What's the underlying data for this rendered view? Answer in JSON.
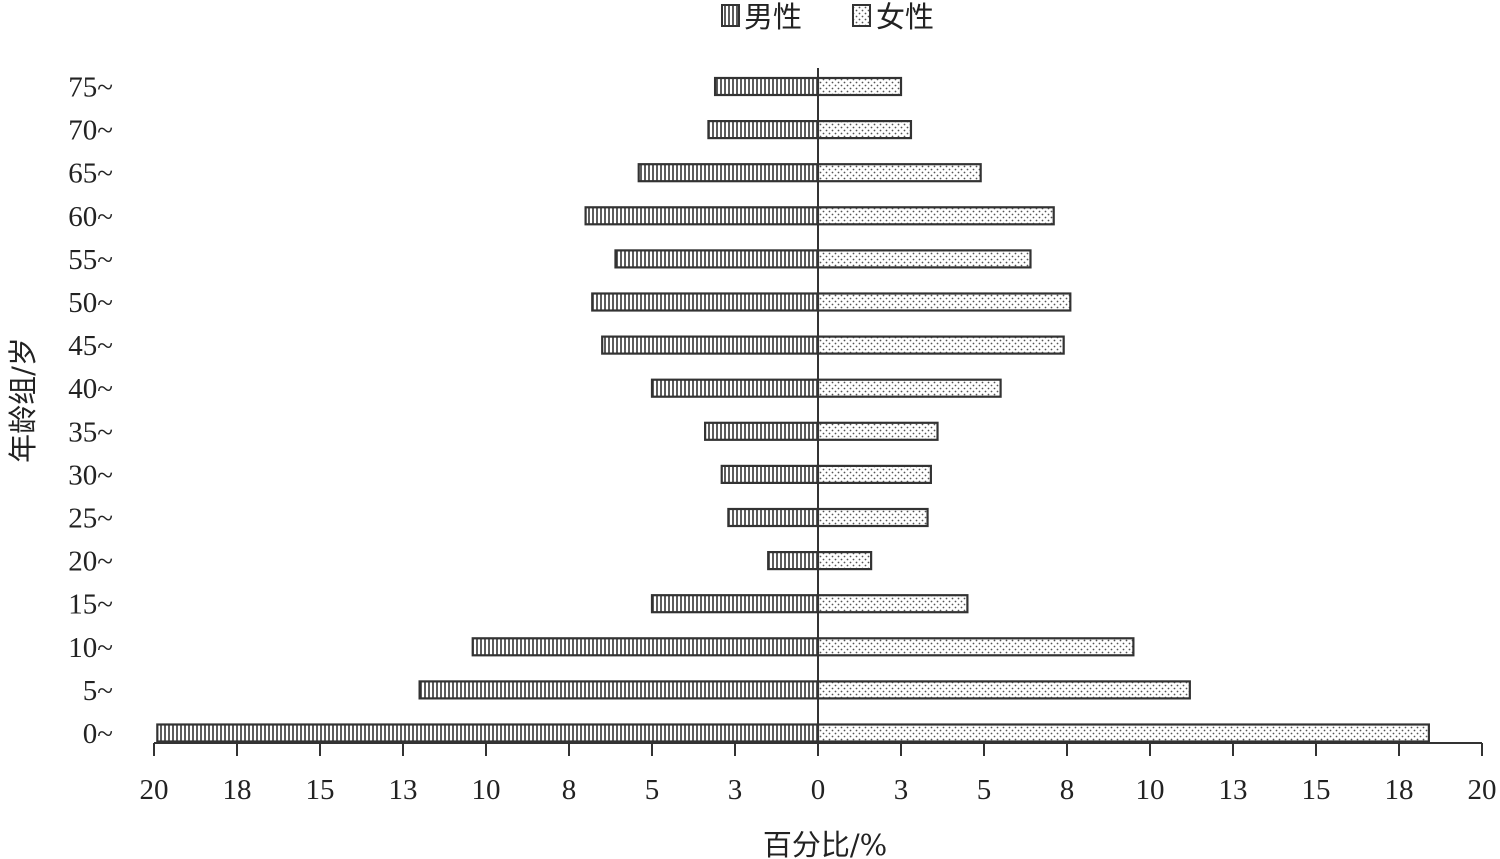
{
  "chart_data": {
    "type": "bar",
    "orientation": "horizontal",
    "layout": "population-pyramid",
    "categories": [
      "0~",
      "5~",
      "10~",
      "15~",
      "20~",
      "25~",
      "30~",
      "35~",
      "40~",
      "45~",
      "50~",
      "55~",
      "60~",
      "65~",
      "70~",
      "75~"
    ],
    "series": [
      {
        "name": "男性",
        "side": "left",
        "pattern": "vertical-lines",
        "values": [
          19.9,
          12.0,
          10.4,
          5.0,
          1.5,
          2.7,
          2.9,
          3.4,
          5.0,
          6.5,
          6.8,
          6.1,
          7.0,
          5.4,
          3.3,
          3.1
        ]
      },
      {
        "name": "女性",
        "side": "right",
        "pattern": "dots",
        "values": [
          18.4,
          11.2,
          9.5,
          4.5,
          1.6,
          3.3,
          3.4,
          3.6,
          5.5,
          7.4,
          7.6,
          6.4,
          7.1,
          4.9,
          2.8,
          2.5
        ]
      }
    ],
    "xlim": [
      -20,
      20
    ],
    "x_ticks": [
      -20,
      -17.5,
      -15,
      -12.5,
      -10,
      -7.5,
      -5,
      -2.5,
      0,
      2.5,
      5,
      7.5,
      10,
      12.5,
      15,
      17.5,
      20
    ],
    "x_tick_labels": [
      "20",
      "18",
      "15",
      "13",
      "10",
      "8",
      "5",
      "3",
      "0",
      "3",
      "5",
      "8",
      "10",
      "13",
      "15",
      "18",
      "20"
    ],
    "xlabel": "百分比/%",
    "ylabel": "年龄组/岁",
    "title": "",
    "legend_position": "top-center",
    "grid": false,
    "colors": {
      "bar_stroke": "#333333",
      "male_pattern": "#333333",
      "female_dot": "#555555",
      "axis": "#333333"
    }
  }
}
